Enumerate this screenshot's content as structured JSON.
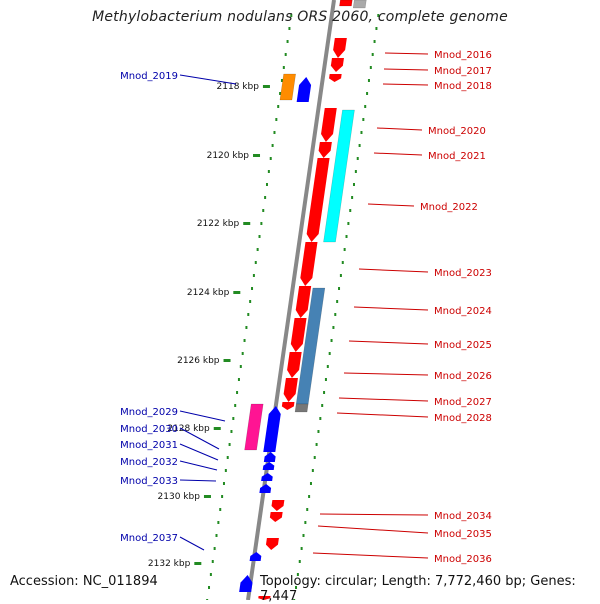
{
  "title": "Methylobacterium nodulans ORS 2060, complete genome",
  "footer": {
    "accession": "Accession: NC_011894",
    "topology": "Topology: circular; Length: 7,772,460 bp; Genes: 7,447"
  },
  "colors": {
    "forward_cds": "#ff0000",
    "reverse_cds": "#0000ff",
    "label_forward": "#cc0000",
    "label_reverse": "#0000aa",
    "backbone": "#888888",
    "tick": "#228b22",
    "orange_feature": "#ff8c00",
    "cyan_feature": "#00ffff",
    "steelblue_feature": "#4682b4",
    "magenta_feature": "#ff1493"
  },
  "ticks": [
    {
      "label": "2118 kbp",
      "value": 2118
    },
    {
      "label": "2120 kbp",
      "value": 2120
    },
    {
      "label": "2122 kbp",
      "value": 2122
    },
    {
      "label": "2124 kbp",
      "value": 2124
    },
    {
      "label": "2126 kbp",
      "value": 2126
    },
    {
      "label": "2128 kbp",
      "value": 2128
    },
    {
      "label": "2130 kbp",
      "value": 2130
    },
    {
      "label": "2132 kbp",
      "value": 2132
    }
  ],
  "genes_right": [
    "Mnod_2016",
    "Mnod_2017",
    "Mnod_2018",
    "Mnod_2020",
    "Mnod_2021",
    "Mnod_2022",
    "Mnod_2023",
    "Mnod_2024",
    "Mnod_2025",
    "Mnod_2026",
    "Mnod_2027",
    "Mnod_2028",
    "Mnod_2034",
    "Mnod_2035",
    "Mnod_2036"
  ],
  "genes_left": [
    "Mnod_2019",
    "Mnod_2029",
    "Mnod_2030",
    "Mnod_2031",
    "Mnod_2032",
    "Mnod_2033",
    "Mnod_2037"
  ]
}
